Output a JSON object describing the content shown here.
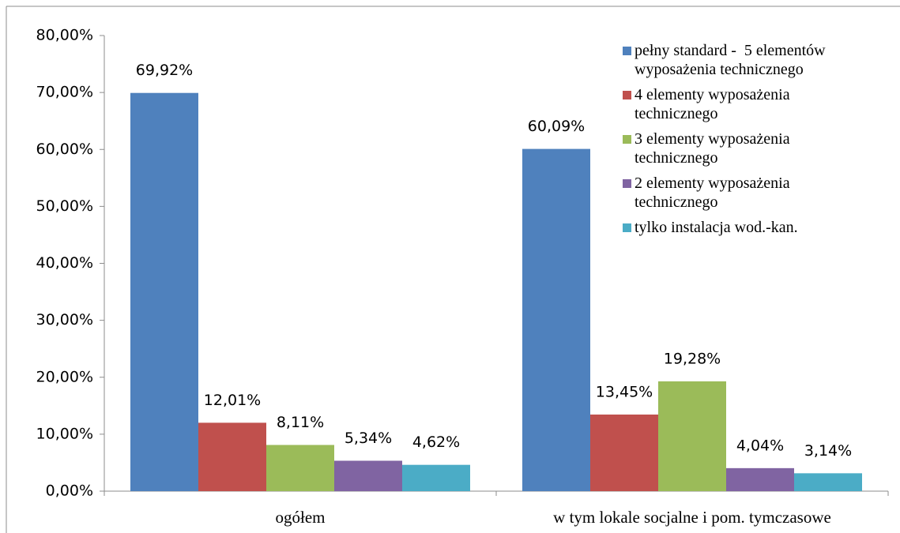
{
  "chart_data": {
    "type": "bar",
    "categories": [
      "ogółem",
      "w tym lokale socjalne i pom. tymczasowe"
    ],
    "series": [
      {
        "name": "pełny standard -  5 elementów wyposażenia technicznego",
        "color": "#4f81bd",
        "values": [
          69.92,
          60.09
        ],
        "value_labels": [
          "69,92%",
          "60,09%"
        ]
      },
      {
        "name": "4 elementy wyposażenia technicznego",
        "color": "#c0504d",
        "values": [
          12.01,
          13.45
        ],
        "value_labels": [
          "12,01%",
          "13,45%"
        ]
      },
      {
        "name": "3 elementy wyposażenia technicznego",
        "color": "#9bbb59",
        "values": [
          8.11,
          19.28
        ],
        "value_labels": [
          "8,11%",
          "19,28%"
        ]
      },
      {
        "name": "2 elementy wyposażenia technicznego",
        "color": "#8064a2",
        "values": [
          5.34,
          4.04
        ],
        "value_labels": [
          "5,34%",
          "4,04%"
        ]
      },
      {
        "name": "tylko instalacja wod.-kan.",
        "color": "#4bacc6",
        "values": [
          4.62,
          3.14
        ],
        "value_labels": [
          "4,62%",
          "3,14%"
        ]
      }
    ],
    "ylim": [
      0,
      80
    ],
    "yticks": [
      {
        "value": 0,
        "label": "0,00%"
      },
      {
        "value": 10,
        "label": "10,00%"
      },
      {
        "value": 20,
        "label": "20,00%"
      },
      {
        "value": 30,
        "label": "30,00%"
      },
      {
        "value": 40,
        "label": "40,00%"
      },
      {
        "value": 50,
        "label": "50,00%"
      },
      {
        "value": 60,
        "label": "60,00%"
      },
      {
        "value": 70,
        "label": "70,00%"
      },
      {
        "value": 80,
        "label": "80,00%"
      }
    ],
    "grid": false,
    "legend": "right"
  }
}
